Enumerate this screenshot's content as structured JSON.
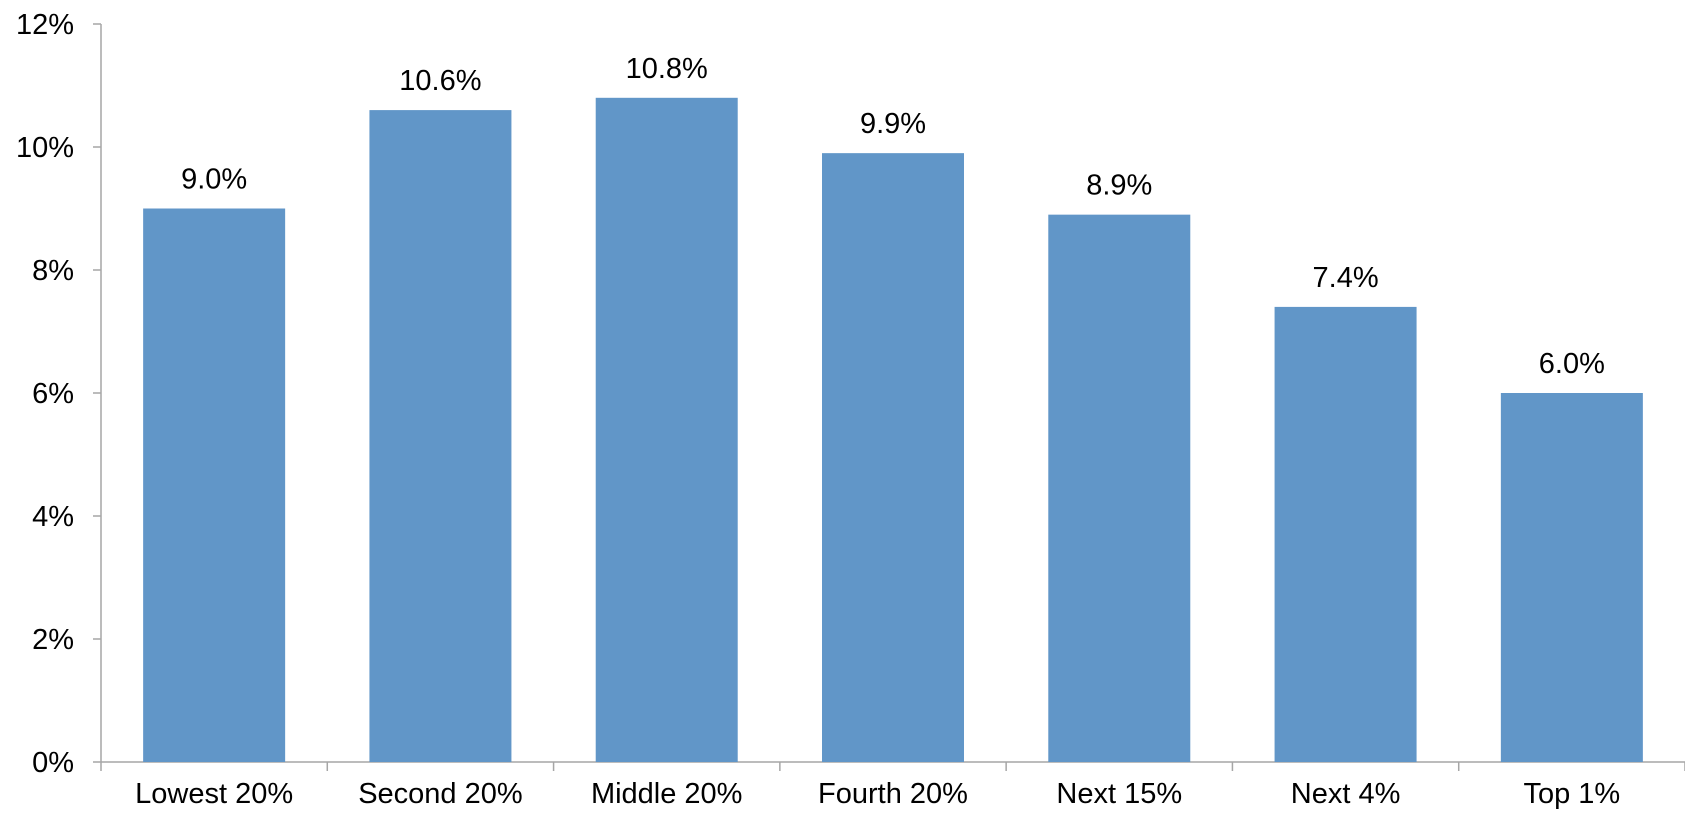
{
  "chart_data": {
    "type": "bar",
    "title": "",
    "xlabel": "",
    "ylabel": "",
    "categories": [
      "Lowest 20%",
      "Second 20%",
      "Middle 20%",
      "Fourth 20%",
      "Next 15%",
      "Next 4%",
      "Top 1%"
    ],
    "values": [
      9.0,
      10.6,
      10.8,
      9.9,
      8.9,
      7.4,
      6.0
    ],
    "value_labels": [
      "9.0%",
      "10.6%",
      "10.8%",
      "9.9%",
      "8.9%",
      "7.4%",
      "6.0%"
    ],
    "ylim": [
      0,
      12
    ],
    "yticks": [
      0,
      2,
      4,
      6,
      8,
      10,
      12
    ],
    "ytick_labels": [
      "0%",
      "2%",
      "4%",
      "6%",
      "8%",
      "10%",
      "12%"
    ],
    "grid": false,
    "legend": "none",
    "colors": {
      "bar": "#6196c8",
      "axis": "#a6a6a6",
      "text": "#000000"
    }
  }
}
